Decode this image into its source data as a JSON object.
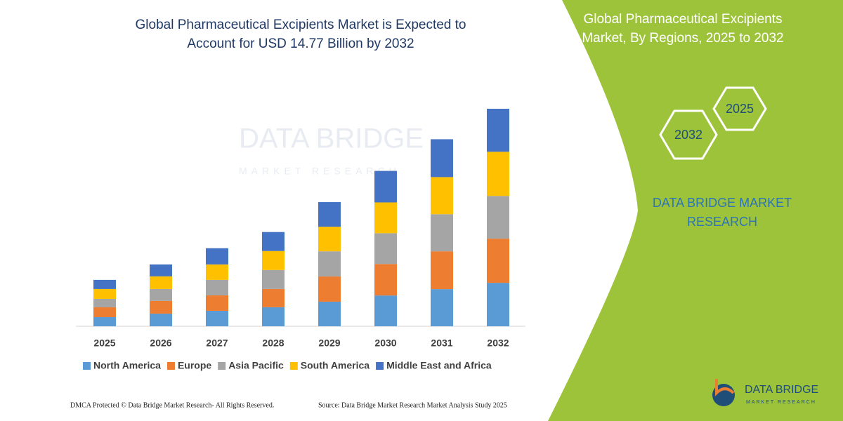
{
  "chart_data": {
    "type": "stacked-bar",
    "title": "Global Pharmaceutical Excipients Market is Expected to",
    "subtitle": "Account for USD 14.77 Billion by 2032",
    "categories": [
      "2025",
      "2026",
      "2027",
      "2028",
      "2029",
      "2030",
      "2031",
      "2032"
    ],
    "series": [
      {
        "name": "North America",
        "color": "#5b9bd5",
        "values": [
          0.62,
          0.86,
          1.05,
          1.29,
          1.67,
          2.09,
          2.52,
          2.95
        ]
      },
      {
        "name": "Europe",
        "color": "#ed7d31",
        "values": [
          0.67,
          0.86,
          1.05,
          1.24,
          1.71,
          2.14,
          2.57,
          3.0
        ]
      },
      {
        "name": "Asia Pacific",
        "color": "#a5a5a5",
        "values": [
          0.57,
          0.81,
          1.05,
          1.29,
          1.71,
          2.09,
          2.52,
          2.9
        ]
      },
      {
        "name": "South America",
        "color": "#ffc000",
        "values": [
          0.67,
          0.86,
          1.05,
          1.29,
          1.67,
          2.09,
          2.52,
          3.0
        ]
      },
      {
        "name": "Middle East and Africa",
        "color": "#4472c4",
        "values": [
          0.62,
          0.81,
          1.1,
          1.29,
          1.67,
          2.14,
          2.57,
          2.92
        ]
      }
    ],
    "ylim": [
      0,
      15
    ]
  },
  "watermark": {
    "brand": "DATA BRIDGE",
    "tagline": "MARKET RESEARCH"
  },
  "panel": {
    "title_line1": "Global Pharmaceutical Excipients",
    "title_line2": "Market, By Regions, 2025 to 2032",
    "hexagons": [
      "2032",
      "2025"
    ],
    "brand_line1": "DATA BRIDGE MARKET",
    "brand_line2": "RESEARCH"
  },
  "logo": {
    "brand": "DATA BRIDGE",
    "tagline": "MARKET RESEARCH"
  },
  "footer": {
    "left": "DMCA Protected © Data Bridge Market Research- All Rights Reserved.",
    "right": "Source: Data Bridge Market Research Market Analysis Study 2025"
  }
}
